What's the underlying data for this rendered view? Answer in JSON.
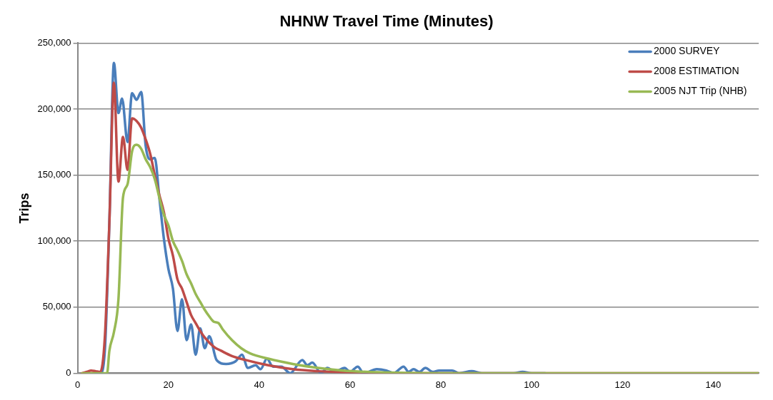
{
  "chart_data": {
    "type": "line",
    "title": "NHNW Travel Time (Minutes)",
    "ylabel": "Trips",
    "xlim": [
      0,
      150
    ],
    "xticks": [
      0,
      20,
      40,
      60,
      80,
      100,
      120,
      140
    ],
    "ylim": [
      0,
      250000
    ],
    "yticks": [
      0,
      {
        "value": 50000,
        "label": "50,000"
      },
      {
        "value": 100000,
        "label": "100,000"
      },
      {
        "value": 150000,
        "label": "150,000"
      },
      {
        "value": 200000,
        "label": "200,000"
      },
      {
        "value": 250000,
        "label": "250,000"
      }
    ],
    "grid": "y",
    "legend": "top right",
    "marker": "none",
    "line_style": "solid",
    "series": [
      {
        "name": "2000 SURVEY",
        "color": "#4a7ebb",
        "x": [
          4,
          5,
          6,
          7,
          8,
          9,
          9.8,
          11,
          12,
          13,
          14,
          15,
          16,
          17,
          18,
          19,
          20,
          21,
          22,
          23,
          24,
          25,
          26,
          27,
          28,
          29,
          30.6,
          32.7,
          34.8,
          36.2,
          37.5,
          39.2,
          40.3,
          41.7,
          43,
          44.9,
          46.8,
          49.5,
          50.6,
          51.7,
          53.6,
          55,
          56.6,
          58.8,
          60,
          61.7,
          63,
          65.9,
          68,
          69.6,
          71.8,
          72.9,
          74,
          75.3,
          76.6,
          78.2,
          79.6,
          82.5,
          84,
          86.8,
          89,
          96,
          98,
          100,
          103
        ],
        "values": [
          0,
          0,
          17000,
          114000,
          235000,
          197000,
          208000,
          175000,
          212000,
          207000,
          213000,
          172000,
          162000,
          163000,
          133000,
          102000,
          79000,
          64000,
          32000,
          56000,
          25000,
          37000,
          14000,
          34000,
          19000,
          28000,
          10000,
          7000,
          9000,
          14000,
          4000,
          6000,
          3000,
          11000,
          5000,
          5000,
          0,
          10000,
          6000,
          8000,
          0,
          4000,
          1000,
          4000,
          1000,
          5000,
          0,
          3000,
          2000,
          0,
          5000,
          1000,
          3000,
          1000,
          4000,
          1000,
          2000,
          2000,
          0,
          1500,
          0,
          0,
          1000,
          0,
          0
        ]
      },
      {
        "name": "2008 ESTIMATION",
        "color": "#be4b48",
        "x": [
          1,
          2,
          3,
          4,
          5,
          6,
          7,
          8,
          9,
          10,
          11,
          12,
          13,
          14,
          15,
          16,
          17,
          18,
          19,
          20,
          21,
          22,
          23,
          24,
          25,
          26,
          27,
          28,
          30,
          31.6,
          34,
          37,
          42,
          47.4,
          53,
          58,
          64,
          70,
          80,
          100,
          150
        ],
        "values": [
          0,
          1000,
          2000,
          1500,
          1000,
          27000,
          114000,
          220000,
          145000,
          179000,
          154000,
          193000,
          191000,
          186000,
          177000,
          166000,
          150000,
          135000,
          122000,
          102000,
          89000,
          71000,
          64000,
          54000,
          44000,
          38000,
          32000,
          27000,
          20000,
          17000,
          13000,
          10000,
          6000,
          3000,
          1500,
          800,
          300,
          0,
          0,
          0,
          0
        ]
      },
      {
        "name": "2005 NJT Trip (NHB)",
        "color": "#98b954",
        "x": [
          1,
          2,
          3,
          4,
          5,
          6,
          6.5,
          7,
          8,
          9,
          10,
          11,
          12,
          13,
          14,
          15,
          16,
          17,
          18,
          19,
          20,
          21,
          22,
          23,
          24,
          25,
          26,
          27,
          28,
          29,
          30,
          31,
          32,
          34,
          36,
          38,
          42,
          47.4,
          53,
          58.4,
          63.7,
          69,
          80,
          100,
          150
        ],
        "values": [
          0,
          0,
          0,
          0,
          0,
          0,
          0,
          17000,
          31000,
          56000,
          133000,
          143000,
          168000,
          173000,
          170000,
          162000,
          156000,
          147000,
          133000,
          120000,
          112000,
          100000,
          93000,
          85000,
          75000,
          68000,
          60000,
          54000,
          48000,
          43000,
          39000,
          38000,
          33000,
          25000,
          19000,
          15000,
          11000,
          7000,
          4000,
          2000,
          1000,
          500,
          0,
          0,
          0
        ]
      }
    ]
  }
}
